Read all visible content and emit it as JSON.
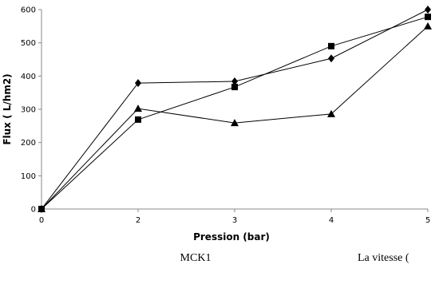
{
  "chart_data": {
    "type": "line",
    "x_label": "Pression (bar)",
    "y_label": "Flux ( L/hm2)",
    "categories": [
      "0",
      "2",
      "3",
      "4",
      "5"
    ],
    "series": [
      {
        "color": "#000000",
        "marker": "diamond",
        "values": [
          0,
          379,
          384,
          453,
          600
        ]
      },
      {
        "color": "#000000",
        "marker": "square",
        "values": [
          0,
          269,
          367,
          490,
          578
        ]
      },
      {
        "color": "#000000",
        "marker": "triangle",
        "values": [
          0,
          302,
          259,
          286,
          550
        ]
      }
    ],
    "ylim": [
      0,
      600
    ],
    "yticks": [
      0,
      100,
      200,
      300,
      400,
      500,
      600
    ],
    "grid": false
  },
  "document": {
    "captions": [
      "MCK1",
      "La vitesse ("
    ]
  }
}
